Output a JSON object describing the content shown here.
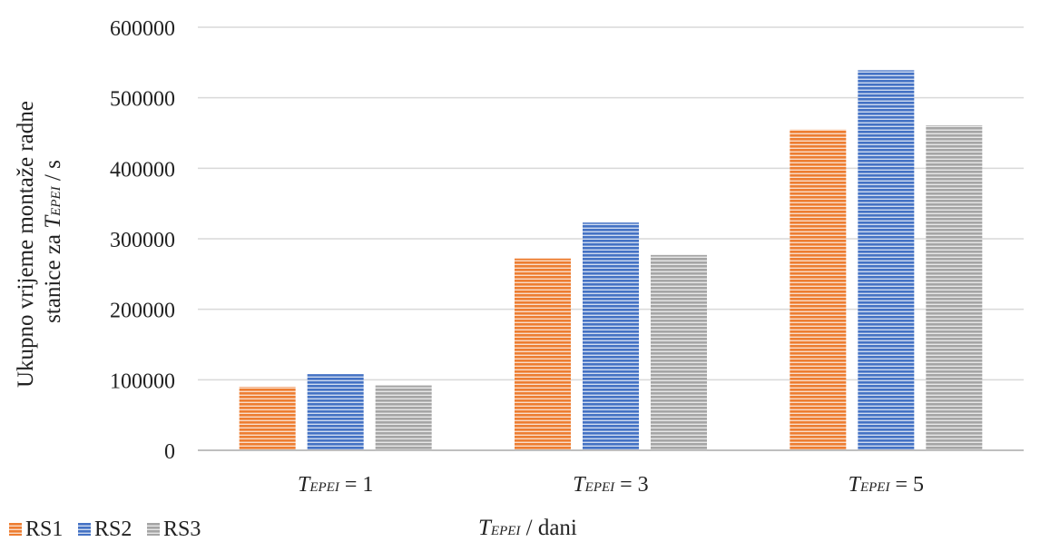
{
  "chart_data": {
    "type": "bar",
    "title": "",
    "ylabel_line1": "Ukupno vrijeme montaže radne",
    "ylabel_line2_prefix": "stanice za ",
    "ylabel_line2_var": "T",
    "ylabel_line2_sub": "EPEI",
    "ylabel_line2_suffix": "  / s",
    "xlabel_var": "T",
    "xlabel_sub": "EPEI",
    "xlabel_suffix": " / dani",
    "ylim": [
      0,
      600000
    ],
    "yticks": [
      0,
      100000,
      200000,
      300000,
      400000,
      500000,
      600000
    ],
    "ytick_labels": [
      "0",
      "100000",
      "200000",
      "300000",
      "400000",
      "500000",
      "600000"
    ],
    "categories": [
      {
        "var": "T",
        "sub": "EPEI",
        "suffix": " = 1"
      },
      {
        "var": "T",
        "sub": "EPEI",
        "suffix": " = 3"
      },
      {
        "var": "T",
        "sub": "EPEI",
        "suffix": " = 5"
      }
    ],
    "series": [
      {
        "name": "RS1",
        "color": "#ED7D31",
        "values": [
          90000,
          272000,
          455000
        ]
      },
      {
        "name": "RS2",
        "color": "#4472C4",
        "values": [
          108000,
          323000,
          539000
        ]
      },
      {
        "name": "RS3",
        "color": "#A5A5A5",
        "values": [
          92000,
          277000,
          461000
        ]
      }
    ],
    "grid": true,
    "legend_position": "bottom-left"
  }
}
